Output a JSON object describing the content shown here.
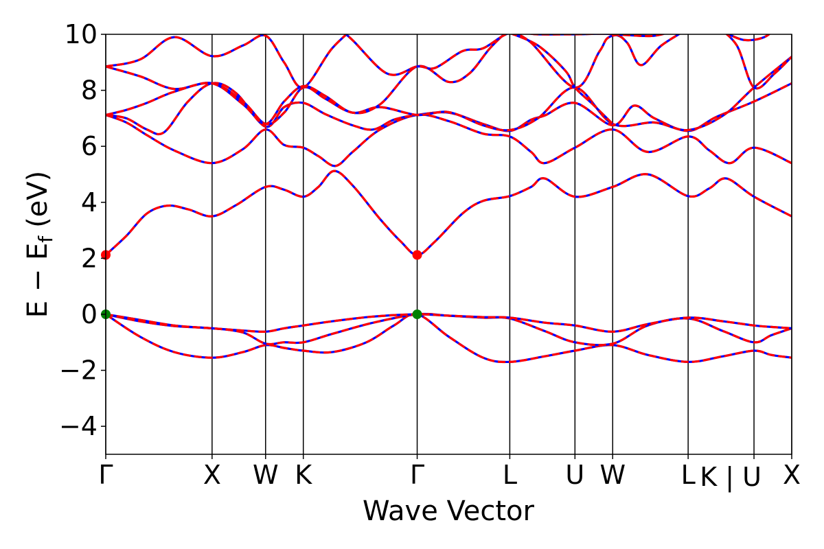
{
  "chart_data": {
    "type": "line",
    "title": "",
    "xlabel": "Wave Vector",
    "ylabel": "E − E_f (eV)",
    "ylabel_parts": {
      "main": "E − E",
      "sub": "f",
      "unit": "(eV)"
    },
    "xlim": [
      0,
      1
    ],
    "ylim": [
      -5,
      10
    ],
    "yticks": [
      -4,
      -2,
      0,
      2,
      4,
      6,
      8,
      10
    ],
    "ytick_labels": [
      "−4",
      "−2",
      "0",
      "2",
      "4",
      "6",
      "8",
      "10"
    ],
    "kpoints": [
      {
        "label": "Γ",
        "x": 0.0
      },
      {
        "label": "X",
        "x": 0.155
      },
      {
        "label": "W",
        "x": 0.233
      },
      {
        "label": "K",
        "x": 0.288
      },
      {
        "label": "Γ",
        "x": 0.454
      },
      {
        "label": "L",
        "x": 0.589
      },
      {
        "label": "U",
        "x": 0.684
      },
      {
        "label": "W",
        "x": 0.739
      },
      {
        "label": "L",
        "x": 0.849
      },
      {
        "label": "K | U",
        "x": 0.945
      },
      {
        "label": "X",
        "x": 1.0
      }
    ],
    "grid": false,
    "colors": {
      "band_solid": "#0000ff",
      "band_dashed": "#ff0000",
      "vbm": "#008000",
      "cbm": "#ff0000",
      "kline": "#000000"
    },
    "markers": [
      {
        "name": "cbm",
        "x": 0.0,
        "y": 2.12
      },
      {
        "name": "cbm",
        "x": 0.454,
        "y": 2.12
      },
      {
        "name": "vbm",
        "x": 0.0,
        "y": 0.0
      },
      {
        "name": "vbm",
        "x": 0.454,
        "y": 0.0
      }
    ],
    "bands": [
      {
        "name": "valence-3",
        "points": [
          [
            0,
            0
          ],
          [
            0.05,
            -0.8
          ],
          [
            0.1,
            -1.35
          ],
          [
            0.155,
            -1.55
          ],
          [
            0.2,
            -1.35
          ],
          [
            0.233,
            -1.1
          ],
          [
            0.26,
            -1.2
          ],
          [
            0.288,
            -1.3
          ],
          [
            0.33,
            -1.35
          ],
          [
            0.38,
            -1.0
          ],
          [
            0.42,
            -0.4
          ],
          [
            0.454,
            0
          ],
          [
            0.5,
            -0.8
          ],
          [
            0.55,
            -1.55
          ],
          [
            0.589,
            -1.7
          ],
          [
            0.64,
            -1.5
          ],
          [
            0.684,
            -1.3
          ],
          [
            0.739,
            -1.1
          ],
          [
            0.79,
            -1.45
          ],
          [
            0.849,
            -1.7
          ],
          [
            0.9,
            -1.5
          ],
          [
            0.945,
            -1.3
          ],
          [
            0.97,
            -1.45
          ],
          [
            1.0,
            -1.55
          ]
        ]
      },
      {
        "name": "valence-2",
        "points": [
          [
            0,
            0
          ],
          [
            0.05,
            -0.25
          ],
          [
            0.1,
            -0.42
          ],
          [
            0.155,
            -0.5
          ],
          [
            0.2,
            -0.65
          ],
          [
            0.233,
            -1.05
          ],
          [
            0.26,
            -1.0
          ],
          [
            0.288,
            -1.0
          ],
          [
            0.33,
            -0.7
          ],
          [
            0.39,
            -0.3
          ],
          [
            0.454,
            0
          ],
          [
            0.5,
            -0.05
          ],
          [
            0.55,
            -0.12
          ],
          [
            0.589,
            -0.15
          ],
          [
            0.64,
            -0.6
          ],
          [
            0.684,
            -1.0
          ],
          [
            0.739,
            -1.05
          ],
          [
            0.79,
            -0.4
          ],
          [
            0.849,
            -0.15
          ],
          [
            0.9,
            -0.6
          ],
          [
            0.945,
            -1.0
          ],
          [
            0.97,
            -0.75
          ],
          [
            1.0,
            -0.5
          ]
        ]
      },
      {
        "name": "valence-1",
        "points": [
          [
            0,
            0
          ],
          [
            0.05,
            -0.2
          ],
          [
            0.1,
            -0.4
          ],
          [
            0.155,
            -0.5
          ],
          [
            0.2,
            -0.58
          ],
          [
            0.233,
            -0.62
          ],
          [
            0.26,
            -0.5
          ],
          [
            0.288,
            -0.4
          ],
          [
            0.33,
            -0.25
          ],
          [
            0.39,
            -0.08
          ],
          [
            0.454,
            0
          ],
          [
            0.5,
            -0.05
          ],
          [
            0.55,
            -0.1
          ],
          [
            0.589,
            -0.12
          ],
          [
            0.64,
            -0.3
          ],
          [
            0.684,
            -0.4
          ],
          [
            0.739,
            -0.62
          ],
          [
            0.79,
            -0.35
          ],
          [
            0.849,
            -0.12
          ],
          [
            0.9,
            -0.25
          ],
          [
            0.945,
            -0.4
          ],
          [
            0.97,
            -0.45
          ],
          [
            1.0,
            -0.5
          ]
        ]
      },
      {
        "name": "conduction-1",
        "points": [
          [
            0,
            2.12
          ],
          [
            0.03,
            2.8
          ],
          [
            0.06,
            3.6
          ],
          [
            0.09,
            3.88
          ],
          [
            0.12,
            3.75
          ],
          [
            0.155,
            3.5
          ],
          [
            0.19,
            3.9
          ],
          [
            0.233,
            4.55
          ],
          [
            0.26,
            4.45
          ],
          [
            0.288,
            4.2
          ],
          [
            0.31,
            4.55
          ],
          [
            0.333,
            5.12
          ],
          [
            0.36,
            4.6
          ],
          [
            0.4,
            3.4
          ],
          [
            0.43,
            2.6
          ],
          [
            0.454,
            2.12
          ],
          [
            0.48,
            2.6
          ],
          [
            0.52,
            3.6
          ],
          [
            0.55,
            4.05
          ],
          [
            0.589,
            4.22
          ],
          [
            0.62,
            4.55
          ],
          [
            0.64,
            4.85
          ],
          [
            0.684,
            4.2
          ],
          [
            0.739,
            4.55
          ],
          [
            0.79,
            5.0
          ],
          [
            0.849,
            4.22
          ],
          [
            0.88,
            4.5
          ],
          [
            0.905,
            4.85
          ],
          [
            0.945,
            4.2
          ],
          [
            1.0,
            3.5
          ]
        ]
      },
      {
        "name": "conduction-2",
        "points": [
          [
            0,
            7.12
          ],
          [
            0.03,
            6.85
          ],
          [
            0.06,
            6.4
          ],
          [
            0.1,
            5.85
          ],
          [
            0.155,
            5.4
          ],
          [
            0.2,
            5.9
          ],
          [
            0.233,
            6.6
          ],
          [
            0.26,
            6.05
          ],
          [
            0.288,
            5.95
          ],
          [
            0.31,
            5.65
          ],
          [
            0.335,
            5.3
          ],
          [
            0.36,
            5.8
          ],
          [
            0.4,
            6.6
          ],
          [
            0.454,
            7.12
          ],
          [
            0.5,
            6.9
          ],
          [
            0.55,
            6.45
          ],
          [
            0.589,
            6.35
          ],
          [
            0.62,
            5.8
          ],
          [
            0.64,
            5.4
          ],
          [
            0.684,
            5.95
          ],
          [
            0.739,
            6.6
          ],
          [
            0.79,
            5.8
          ],
          [
            0.849,
            6.35
          ],
          [
            0.88,
            5.85
          ],
          [
            0.91,
            5.4
          ],
          [
            0.945,
            5.95
          ],
          [
            1.0,
            5.4
          ]
        ]
      },
      {
        "name": "conduction-3",
        "points": [
          [
            0,
            7.12
          ],
          [
            0.03,
            7.0
          ],
          [
            0.06,
            6.6
          ],
          [
            0.085,
            6.5
          ],
          [
            0.12,
            7.6
          ],
          [
            0.155,
            8.25
          ],
          [
            0.19,
            7.9
          ],
          [
            0.233,
            6.7
          ],
          [
            0.26,
            7.4
          ],
          [
            0.288,
            7.55
          ],
          [
            0.32,
            7.15
          ],
          [
            0.36,
            6.75
          ],
          [
            0.39,
            6.6
          ],
          [
            0.42,
            6.95
          ],
          [
            0.454,
            7.12
          ],
          [
            0.5,
            7.2
          ],
          [
            0.55,
            6.8
          ],
          [
            0.589,
            6.55
          ],
          [
            0.62,
            6.95
          ],
          [
            0.64,
            7.1
          ],
          [
            0.684,
            7.55
          ],
          [
            0.739,
            6.75
          ],
          [
            0.77,
            7.45
          ],
          [
            0.8,
            7.0
          ],
          [
            0.849,
            6.55
          ],
          [
            0.89,
            7.05
          ],
          [
            0.945,
            7.6
          ],
          [
            1.0,
            8.25
          ]
        ]
      },
      {
        "name": "conduction-4",
        "points": [
          [
            0,
            7.12
          ],
          [
            0.03,
            7.3
          ],
          [
            0.06,
            7.55
          ],
          [
            0.1,
            7.95
          ],
          [
            0.155,
            8.25
          ],
          [
            0.2,
            7.6
          ],
          [
            0.233,
            6.8
          ],
          [
            0.26,
            7.2
          ],
          [
            0.288,
            8.1
          ],
          [
            0.32,
            7.7
          ],
          [
            0.36,
            7.2
          ],
          [
            0.4,
            7.4
          ],
          [
            0.454,
            7.12
          ],
          [
            0.5,
            7.22
          ],
          [
            0.55,
            6.75
          ],
          [
            0.589,
            6.58
          ],
          [
            0.63,
            7.0
          ],
          [
            0.684,
            8.1
          ],
          [
            0.739,
            6.8
          ],
          [
            0.8,
            6.85
          ],
          [
            0.849,
            6.58
          ],
          [
            0.9,
            7.1
          ],
          [
            0.945,
            8.1
          ],
          [
            1.0,
            9.2
          ]
        ]
      },
      {
        "name": "conduction-5",
        "points": [
          [
            0,
            8.85
          ],
          [
            0.05,
            9.1
          ],
          [
            0.1,
            9.9
          ],
          [
            0.155,
            9.22
          ],
          [
            0.2,
            9.6
          ],
          [
            0.233,
            9.95
          ],
          [
            0.26,
            9.0
          ],
          [
            0.288,
            8.1
          ],
          [
            0.33,
            9.5
          ],
          [
            0.37,
            10.4
          ]
        ]
      },
      {
        "name": "conduction-6",
        "points": [
          [
            0,
            8.85
          ],
          [
            0.05,
            8.5
          ],
          [
            0.1,
            8.05
          ],
          [
            0.155,
            8.25
          ],
          [
            0.2,
            7.5
          ],
          [
            0.233,
            6.8
          ],
          [
            0.26,
            7.6
          ],
          [
            0.288,
            8.15
          ],
          [
            0.32,
            7.8
          ],
          [
            0.36,
            7.2
          ],
          [
            0.4,
            7.5
          ],
          [
            0.454,
            8.85
          ],
          [
            0.5,
            8.3
          ],
          [
            0.53,
            8.6
          ],
          [
            0.56,
            9.5
          ],
          [
            0.589,
            10.2
          ]
        ]
      },
      {
        "name": "conduction-7",
        "points": [
          [
            0.31,
            10.3
          ],
          [
            0.35,
            10.0
          ],
          [
            0.41,
            8.6
          ],
          [
            0.454,
            8.85
          ],
          [
            0.48,
            8.8
          ],
          [
            0.52,
            9.4
          ],
          [
            0.55,
            9.5
          ],
          [
            0.589,
            10.05
          ],
          [
            0.63,
            10.0
          ],
          [
            0.684,
            10.0
          ],
          [
            0.739,
            10.0
          ],
          [
            0.76,
            9.7
          ],
          [
            0.78,
            8.9
          ],
          [
            0.81,
            9.6
          ],
          [
            0.849,
            10.2
          ]
        ]
      },
      {
        "name": "conduction-8",
        "points": [
          [
            0.589,
            10.1
          ],
          [
            0.62,
            9.7
          ],
          [
            0.684,
            8.1
          ],
          [
            0.72,
            9.4
          ],
          [
            0.739,
            9.95
          ],
          [
            0.8,
            9.95
          ],
          [
            0.849,
            10.3
          ]
        ]
      },
      {
        "name": "conduction-9",
        "points": [
          [
            0.589,
            10.05
          ],
          [
            0.63,
            9.6
          ],
          [
            0.67,
            8.7
          ],
          [
            0.684,
            8.1
          ],
          [
            0.71,
            7.5
          ],
          [
            0.739,
            6.8
          ]
        ]
      },
      {
        "name": "conduction-10",
        "points": [
          [
            0.89,
            10.3
          ],
          [
            0.92,
            9.6
          ],
          [
            0.945,
            8.1
          ],
          [
            0.975,
            8.6
          ],
          [
            1.0,
            9.2
          ]
        ]
      },
      {
        "name": "conduction-11",
        "points": [
          [
            0.9,
            10.1
          ],
          [
            0.93,
            9.8
          ],
          [
            0.96,
            9.9
          ],
          [
            0.98,
            10.3
          ]
        ]
      }
    ]
  }
}
